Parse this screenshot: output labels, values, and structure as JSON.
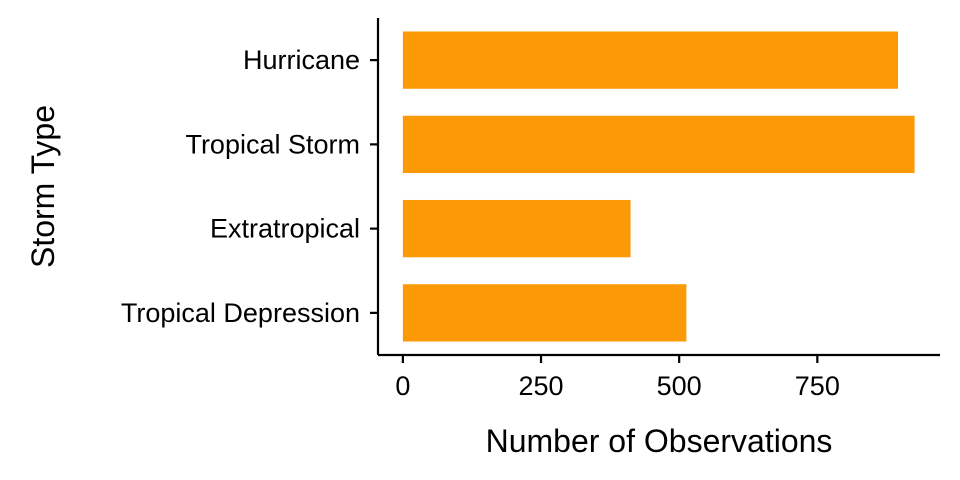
{
  "chart_data": {
    "type": "bar",
    "orientation": "horizontal",
    "title": "",
    "xlabel": "Number of Observations",
    "ylabel": "Storm Type",
    "categories": [
      "Hurricane",
      "Tropical Storm",
      "Extratropical",
      "Tropical Depression"
    ],
    "values": [
      896,
      926,
      412,
      513
    ],
    "xlim": [
      -45,
      972
    ],
    "x_ticks": [
      0,
      250,
      500,
      750
    ],
    "x_tick_labels": [
      "0",
      "250",
      "500",
      "750"
    ],
    "grid": false,
    "legend": "none",
    "bar_color": "#FB9A06",
    "axis_color": "#000000"
  }
}
